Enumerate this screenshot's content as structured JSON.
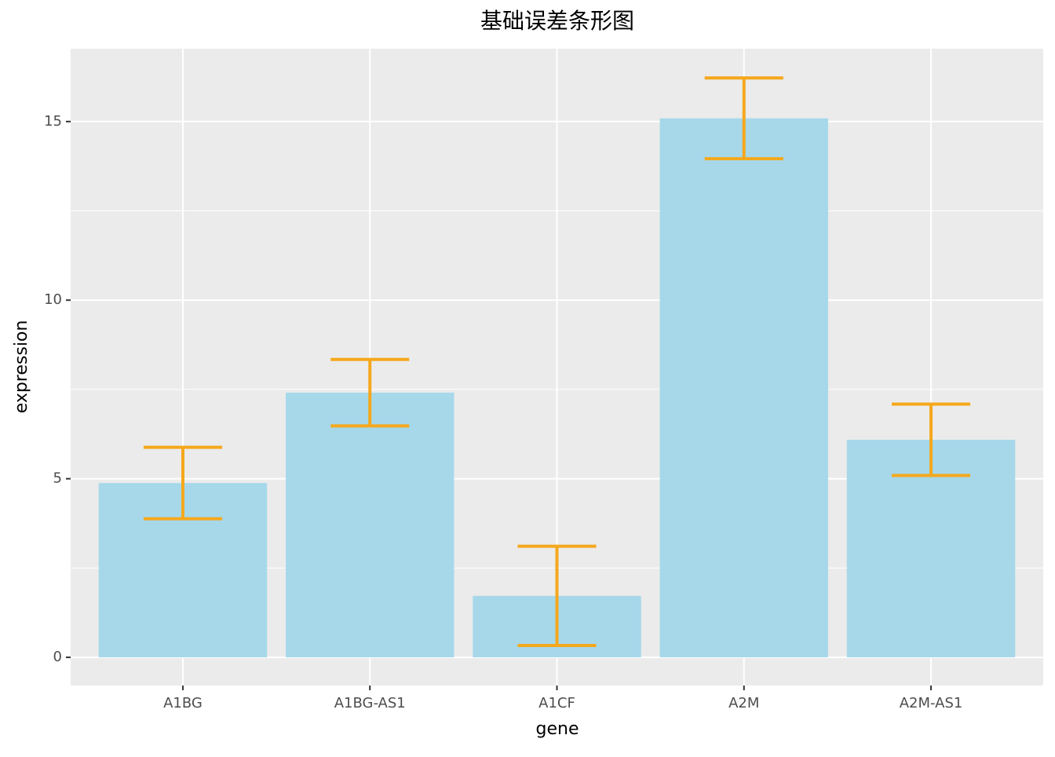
{
  "chart_data": {
    "type": "bar",
    "title": "基础误差条形图",
    "x_label": "gene",
    "y_label": "expression",
    "categories": [
      "A1BG",
      "A1BG-AS1",
      "A1CF",
      "A2M",
      "A2M-AS1"
    ],
    "values": [
      4.88,
      7.41,
      1.72,
      15.09,
      6.09
    ],
    "errors": [
      1.0,
      0.93,
      1.39,
      1.13,
      1.0
    ],
    "color": "#a6d8ea",
    "error_color": "#f5a81c",
    "ylim": [
      -0.79,
      17.04
    ],
    "yticks": [
      0,
      5,
      10,
      15
    ],
    "minor_yticks": [
      2.5,
      7.5,
      12.5
    ],
    "grid": true
  }
}
